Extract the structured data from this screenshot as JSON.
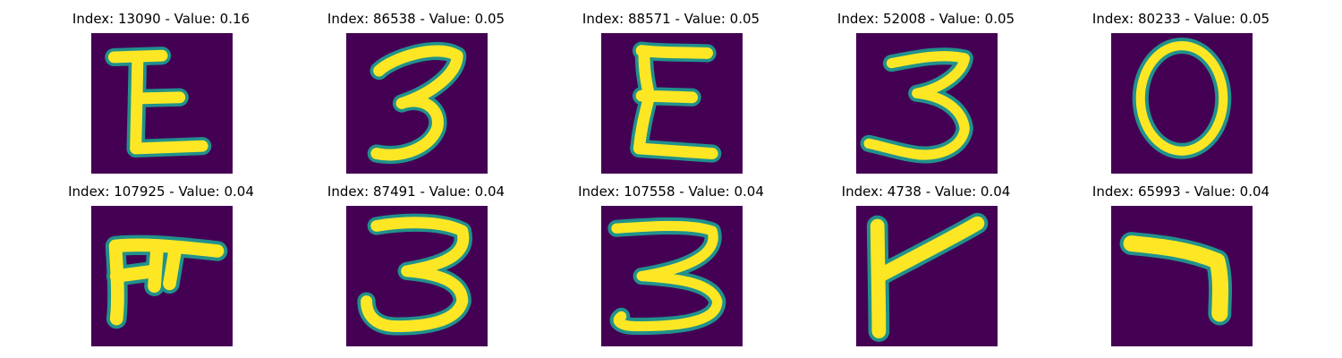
{
  "colors": {
    "background": "#440154",
    "stroke_edge": "#21918c",
    "stroke_core": "#fde725"
  },
  "panels": [
    {
      "title": "Index: 13090 - Value: 0.16",
      "glyph": "E"
    },
    {
      "title": "Index: 86538 - Value: 0.05",
      "glyph": "3"
    },
    {
      "title": "Index: 88571 - Value: 0.05",
      "glyph": "E"
    },
    {
      "title": "Index: 52008 - Value: 0.05",
      "glyph": "3"
    },
    {
      "title": "Index: 80233 - Value: 0.05",
      "glyph": "O"
    },
    {
      "title": "Index: 107925 - Value: 0.04",
      "glyph": "F-like"
    },
    {
      "title": "Index: 87491 - Value: 0.04",
      "glyph": "3"
    },
    {
      "title": "Index: 107558 - Value: 0.04",
      "glyph": "3"
    },
    {
      "title": "Index: 4738 - Value: 0.04",
      "glyph": "r-like"
    },
    {
      "title": "Index: 65993 - Value: 0.04",
      "glyph": "7-like"
    }
  ]
}
